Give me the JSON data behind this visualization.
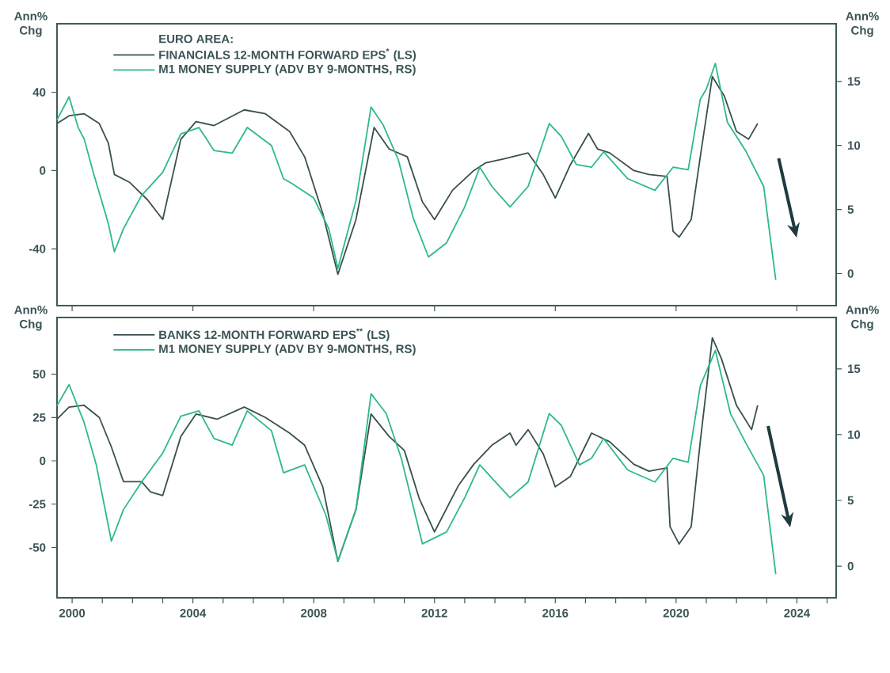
{
  "chart_data": [
    {
      "type": "line",
      "legend_title": "EURO AREA:",
      "ylabel": "Ann% Chg",
      "y2label": "Ann% Chg",
      "legend": "top left",
      "tick_labels": "y",
      "xlim": [
        1999.5,
        2025.3
      ],
      "xticks": [
        {
          "value": 2000,
          "label": null
        },
        {
          "value": 2004,
          "label": null
        },
        {
          "value": 2008,
          "label": null
        },
        {
          "value": 2012,
          "label": null
        },
        {
          "value": 2016,
          "label": null
        },
        {
          "value": 2020,
          "label": null
        },
        {
          "value": 2024,
          "label": null
        }
      ],
      "ylim": [
        -69,
        75
      ],
      "yticks": [
        -40,
        0,
        40
      ],
      "y2lim": [
        -2.5,
        19.5
      ],
      "y2ticks": [
        0,
        5,
        10,
        15
      ],
      "series": [
        {
          "name": "FINANCIALS 12-MONTH FORWARD EPS$^{*}$ (LS)",
          "color": "#3a4f52",
          "axis": "y",
          "x": [
            1999.5,
            1999.9,
            2000.4,
            2000.9,
            2001.2,
            2001.4,
            2001.9,
            2002.5,
            2003.0,
            2003.6,
            2004.1,
            2004.7,
            2005.7,
            2006.4,
            2007.2,
            2007.7,
            2008.3,
            2008.8,
            2009.4,
            2010.0,
            2010.5,
            2011.1,
            2011.6,
            2012.0,
            2012.6,
            2013.3,
            2013.7,
            2014.3,
            2015.1,
            2015.6,
            2016.0,
            2016.5,
            2017.1,
            2017.4,
            2017.8,
            2018.6,
            2019.1,
            2019.7,
            2019.9,
            2020.1,
            2020.5,
            2020.8,
            2021.2,
            2021.6,
            2022.0,
            2022.4,
            2022.7
          ],
          "values": [
            24,
            28,
            29,
            24,
            14,
            -2,
            -6,
            -15,
            -25,
            16,
            25,
            23,
            31,
            29,
            20,
            7,
            -22,
            -53,
            -25,
            22,
            11,
            7,
            -16,
            -25,
            -10,
            0,
            4,
            6,
            9,
            -2,
            -14,
            3,
            19,
            11,
            9,
            0,
            -2,
            -3,
            -31,
            -34,
            -25,
            7,
            48,
            38,
            20,
            16,
            24
          ]
        },
        {
          "name": "M1 MONEY SUPPLY (ADV BY 9-MONTHS, RS)",
          "color": "#2db98c",
          "axis": "y2",
          "x": [
            1999.5,
            1999.9,
            2000.2,
            2000.4,
            2000.7,
            2001.2,
            2001.4,
            2001.7,
            2002.3,
            2003.0,
            2003.6,
            2004.2,
            2004.7,
            2005.3,
            2005.8,
            2006.6,
            2007.0,
            2007.3,
            2008.0,
            2008.5,
            2008.8,
            2009.4,
            2009.9,
            2010.3,
            2010.8,
            2011.3,
            2011.8,
            2012.4,
            2013.0,
            2013.5,
            2013.9,
            2014.5,
            2015.1,
            2015.8,
            2016.2,
            2016.7,
            2017.2,
            2017.6,
            2018.4,
            2019.3,
            2019.9,
            2020.4,
            2020.8,
            2021.0,
            2021.3,
            2021.7,
            2022.3,
            2022.9,
            2023.3
          ],
          "values": [
            12.0,
            13.8,
            11.4,
            10.5,
            7.9,
            3.9,
            1.7,
            3.5,
            6.1,
            7.9,
            10.9,
            11.4,
            9.6,
            9.4,
            11.4,
            10.0,
            7.4,
            7.0,
            5.9,
            3.5,
            0.4,
            5.7,
            13.0,
            11.6,
            8.9,
            4.3,
            1.3,
            2.4,
            5.2,
            8.3,
            6.8,
            5.2,
            6.8,
            11.7,
            10.7,
            8.5,
            8.3,
            9.5,
            7.4,
            6.5,
            8.3,
            8.1,
            13.6,
            14.4,
            16.4,
            11.8,
            9.6,
            6.8,
            -0.5
          ]
        }
      ]
    },
    {
      "type": "line",
      "ylabel": "Ann% Chg",
      "y2label": "Ann% Chg",
      "legend": "top left",
      "xlim": [
        1999.5,
        2025.3
      ],
      "xticks": [
        2000,
        {
          "value": 2001,
          "label": null
        },
        {
          "value": 2002,
          "label": null
        },
        {
          "value": 2003,
          "label": null
        },
        2004,
        {
          "value": 2005,
          "label": null
        },
        {
          "value": 2006,
          "label": null
        },
        {
          "value": 2007,
          "label": null
        },
        2008,
        {
          "value": 2009,
          "label": null
        },
        {
          "value": 2010,
          "label": null
        },
        {
          "value": 2011,
          "label": null
        },
        2012,
        {
          "value": 2013,
          "label": null
        },
        {
          "value": 2014,
          "label": null
        },
        {
          "value": 2015,
          "label": null
        },
        2016,
        {
          "value": 2017,
          "label": null
        },
        {
          "value": 2018,
          "label": null
        },
        {
          "value": 2019,
          "label": null
        },
        2020,
        {
          "value": 2021,
          "label": null
        },
        {
          "value": 2022,
          "label": null
        },
        {
          "value": 2023,
          "label": null
        },
        2024,
        {
          "value": 2025,
          "label": null
        }
      ],
      "ylim": [
        -79,
        82.7
      ],
      "yticks": [
        -50,
        -25,
        0,
        25,
        50
      ],
      "y2lim": [
        -2.4,
        18.9
      ],
      "y2ticks": [
        0,
        5,
        10,
        15
      ],
      "series": [
        {
          "name": "BANKS 12-MONTH FORWARD EPS$^{**}$ (LS)",
          "color": "#3a4f52",
          "axis": "y",
          "x": [
            1999.5,
            1999.9,
            2000.4,
            2000.9,
            2001.3,
            2001.7,
            2002.3,
            2002.6,
            2003.0,
            2003.6,
            2004.1,
            2004.8,
            2005.7,
            2006.4,
            2007.2,
            2007.7,
            2008.3,
            2008.8,
            2009.4,
            2009.9,
            2010.5,
            2011.0,
            2011.5,
            2012.0,
            2012.8,
            2013.3,
            2013.9,
            2014.5,
            2014.7,
            2015.1,
            2015.6,
            2016.0,
            2016.5,
            2017.2,
            2017.8,
            2018.6,
            2019.1,
            2019.7,
            2019.8,
            2020.1,
            2020.5,
            2020.8,
            2021.2,
            2021.5,
            2022.0,
            2022.5,
            2022.7
          ],
          "values": [
            24,
            31,
            32,
            25,
            8,
            -12,
            -12,
            -18,
            -20,
            14,
            27,
            24,
            31,
            25,
            16,
            9,
            -15,
            -58,
            -28,
            27,
            14,
            6,
            -22,
            -41,
            -14,
            -2,
            9,
            16,
            9,
            18,
            4,
            -15,
            -9,
            16,
            11,
            -2,
            -6,
            -4,
            -38,
            -48,
            -38,
            11,
            71,
            59,
            32,
            18,
            32
          ]
        },
        {
          "name": "M1 MONEY SUPPLY (ADV BY 9-MONTHS, RS)",
          "color": "#2db98c",
          "axis": "y2",
          "x": [
            1999.5,
            1999.9,
            2000.4,
            2000.8,
            2001.3,
            2001.7,
            2002.3,
            2003.0,
            2003.6,
            2004.2,
            2004.7,
            2005.3,
            2005.8,
            2006.6,
            2007.0,
            2007.7,
            2008.4,
            2008.8,
            2009.4,
            2009.9,
            2010.4,
            2010.9,
            2011.6,
            2012.4,
            2013.0,
            2013.5,
            2014.1,
            2014.5,
            2015.1,
            2015.8,
            2016.2,
            2016.8,
            2017.2,
            2017.6,
            2018.4,
            2019.3,
            2019.9,
            2020.4,
            2020.8,
            2021.3,
            2021.8,
            2022.3,
            2022.9,
            2023.3
          ],
          "values": [
            12.2,
            13.8,
            10.9,
            7.7,
            1.9,
            4.3,
            6.4,
            8.6,
            11.4,
            11.8,
            9.7,
            9.2,
            11.8,
            10.3,
            7.1,
            7.7,
            3.9,
            0.4,
            4.3,
            13.1,
            11.6,
            8.2,
            1.7,
            2.6,
            5.2,
            7.7,
            6.2,
            5.2,
            6.4,
            11.6,
            10.7,
            7.7,
            8.2,
            9.7,
            7.3,
            6.4,
            8.2,
            7.9,
            13.7,
            16.4,
            11.6,
            9.4,
            6.9,
            -0.6
          ]
        }
      ]
    }
  ]
}
